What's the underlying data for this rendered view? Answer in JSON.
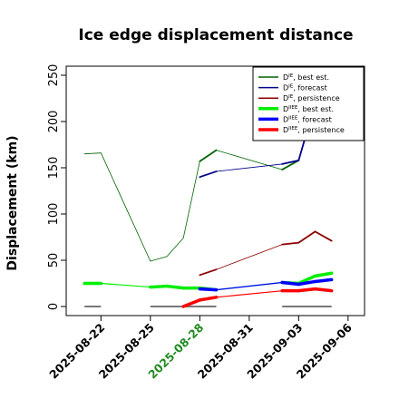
{
  "chart_data": {
    "type": "line",
    "title": "Ice edge displacement distance",
    "ylabel": "Displacement (km)",
    "xlabel": "",
    "ylim": [
      0,
      260
    ],
    "xlim": [
      "2025-08-20",
      "2025-09-07"
    ],
    "yticks": [
      "0",
      "50",
      "100",
      "150",
      "200",
      "250"
    ],
    "xticks": [
      {
        "date": "2025-08-22",
        "label": "2025-08-22",
        "color": "#000000"
      },
      {
        "date": "2025-08-25",
        "label": "2025-08-25",
        "color": "#000000"
      },
      {
        "date": "2025-08-28",
        "label": "2025-08-28",
        "color": "#228B22"
      },
      {
        "date": "2025-08-31",
        "label": "2025-08-31",
        "color": "#000000"
      },
      {
        "date": "2025-09-03",
        "label": "2025-09-03",
        "color": "#000000"
      },
      {
        "date": "2025-09-06",
        "label": "2025-09-06",
        "color": "#000000"
      }
    ],
    "legend_position": "top-right",
    "series": [
      {
        "name": "D^IE, best est.",
        "sup": "IE",
        "suffix": ", best est.",
        "color": "#006400",
        "width": 0.8,
        "points": [
          [
            "2025-08-21",
            165
          ],
          [
            "2025-08-22",
            166
          ],
          [
            "2025-08-25",
            49
          ],
          [
            "2025-08-26",
            54
          ],
          [
            "2025-08-27",
            74
          ],
          [
            "2025-08-28",
            157
          ],
          [
            "2025-08-29",
            169
          ],
          [
            "2025-09-02",
            148
          ],
          [
            "2025-09-03",
            158
          ],
          [
            "2025-09-03.6",
            195
          ]
        ],
        "thick_segments": [
          [
            5,
            6
          ],
          [
            7,
            8
          ]
        ]
      },
      {
        "name": "D^IE, forecast",
        "sup": "IE",
        "suffix": ", forecast",
        "color": "#00008B",
        "width": 0.8,
        "points": [
          [
            "2025-08-28",
            140
          ],
          [
            "2025-08-29",
            146
          ],
          [
            "2025-09-02",
            154
          ],
          [
            "2025-09-03",
            158
          ],
          [
            "2025-09-03.6",
            195
          ]
        ],
        "thick_segments": [
          [
            0,
            1
          ],
          [
            2,
            3
          ],
          [
            3,
            4
          ]
        ]
      },
      {
        "name": "D^IE, persistence",
        "sup": "IE",
        "suffix": ", persistence",
        "color": "#8B0000",
        "width": 0.8,
        "points": [
          [
            "2025-08-28",
            34
          ],
          [
            "2025-08-29",
            40
          ],
          [
            "2025-09-02",
            67
          ],
          [
            "2025-09-03",
            69
          ],
          [
            "2025-09-04",
            81
          ],
          [
            "2025-09-05",
            71
          ]
        ],
        "thick_segments": [
          [
            0,
            1
          ],
          [
            2,
            3
          ],
          [
            3,
            4
          ],
          [
            4,
            5
          ]
        ]
      },
      {
        "name": "D^IIEE, best est.",
        "sup": "IIEE",
        "suffix": ", best est.",
        "color": "#00EE00",
        "width": 3.5,
        "points": [
          [
            "2025-08-21",
            25
          ],
          [
            "2025-08-22",
            25
          ],
          [
            "2025-08-25",
            21
          ],
          [
            "2025-08-26",
            22
          ],
          [
            "2025-08-27",
            20
          ],
          [
            "2025-08-28",
            20
          ],
          [
            "2025-08-29",
            18
          ],
          [
            "2025-09-02",
            26
          ],
          [
            "2025-09-03",
            25
          ],
          [
            "2025-09-04",
            33
          ],
          [
            "2025-09-05",
            36
          ]
        ],
        "thin_segments": [
          [
            1,
            2
          ],
          [
            6,
            7
          ]
        ]
      },
      {
        "name": "D^IIEE, forecast",
        "sup": "IIEE",
        "suffix": ", forecast",
        "color": "#0000FF",
        "width": 3.5,
        "points": [
          [
            "2025-08-28",
            19
          ],
          [
            "2025-08-29",
            18
          ],
          [
            "2025-09-02",
            26
          ],
          [
            "2025-09-03",
            24
          ],
          [
            "2025-09-04",
            27
          ],
          [
            "2025-09-05",
            29
          ]
        ],
        "thin_segments": [
          [
            1,
            2
          ]
        ]
      },
      {
        "name": "D^IIEE, persistence",
        "sup": "IIEE",
        "suffix": ", persistence",
        "color": "#FF0000",
        "width": 3.5,
        "points": [
          [
            "2025-08-27",
            0
          ],
          [
            "2025-08-28",
            7
          ],
          [
            "2025-08-29",
            10
          ],
          [
            "2025-09-02",
            17
          ],
          [
            "2025-09-03",
            17
          ],
          [
            "2025-09-04",
            19
          ],
          [
            "2025-09-05",
            17
          ]
        ],
        "thin_segments": [
          [
            2,
            3
          ]
        ]
      }
    ],
    "zero_baselines": [
      {
        "from": "2025-08-21",
        "to": "2025-08-22"
      },
      {
        "from": "2025-08-25",
        "to": "2025-08-29"
      },
      {
        "from": "2025-09-02",
        "to": "2025-09-05"
      }
    ]
  }
}
